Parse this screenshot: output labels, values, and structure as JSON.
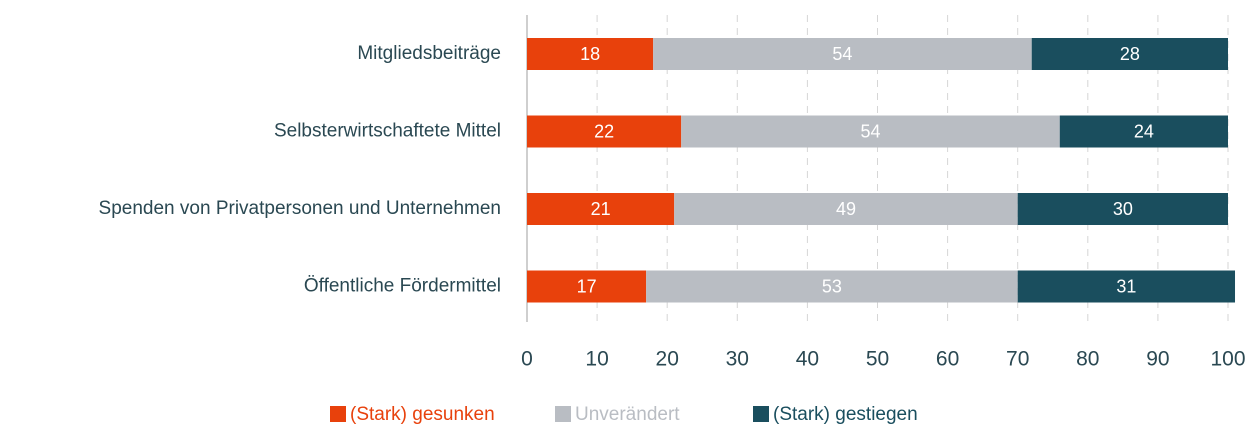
{
  "chart_data": {
    "type": "stacked-barh",
    "categories": [
      "Mitgliedsbeiträge",
      "Selbsterwirtschaftete Mittel",
      "Spenden von Privatpersonen und Unternehmen",
      "Öffentliche Fördermittel"
    ],
    "series": [
      {
        "name": "(Stark) gesunken",
        "color": "#e8410c",
        "values": [
          18,
          22,
          21,
          17
        ]
      },
      {
        "name": "Unverändert",
        "color": "#b9bdc3",
        "values": [
          54,
          54,
          49,
          53
        ]
      },
      {
        "name": "(Stark) gestiegen",
        "color": "#1a4e5e",
        "values": [
          28,
          24,
          30,
          31
        ]
      }
    ],
    "xlim": [
      0,
      100
    ],
    "xticks": [
      0,
      10,
      20,
      30,
      40,
      50,
      60,
      70,
      80,
      90,
      100
    ],
    "grid": true,
    "legend": "bottom"
  }
}
